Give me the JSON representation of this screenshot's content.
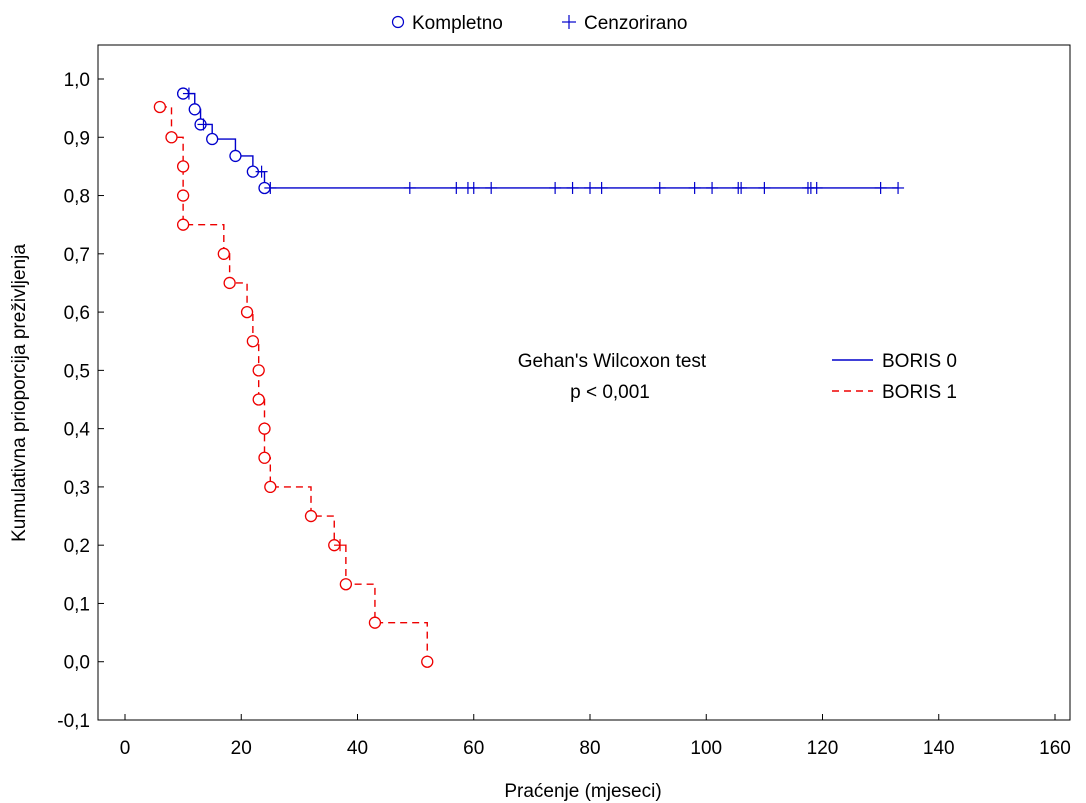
{
  "chart_data": {
    "type": "line",
    "title": "",
    "xlabel": "Praćenje (mjeseci)",
    "ylabel": "Kumulativna prioporcija preživljenja",
    "xlim": [
      0,
      160
    ],
    "ylim": [
      -0.1,
      1.0
    ],
    "x_ticks": [
      0,
      20,
      40,
      60,
      80,
      100,
      120,
      140,
      160
    ],
    "y_ticks": [
      -0.1,
      0.0,
      0.1,
      0.2,
      0.3,
      0.4,
      0.5,
      0.6,
      0.7,
      0.8,
      0.9,
      1.0
    ],
    "x_tick_labels": [
      "0",
      "20",
      "40",
      "60",
      "80",
      "100",
      "120",
      "140",
      "160"
    ],
    "y_tick_labels": [
      "-0,1",
      "0,0",
      "0,1",
      "0,2",
      "0,3",
      "0,4",
      "0,5",
      "0,6",
      "0,7",
      "0,8",
      "0,9",
      "1,0"
    ],
    "grid": false,
    "legend_top": {
      "complete_label": "Kompletno",
      "censored_label": "Cenzorirano",
      "placement": "top-center"
    },
    "annotation": {
      "line1": "Gehan's Wilcoxon test",
      "line2": "p < 0,001"
    },
    "series": [
      {
        "name": "BORIS 0",
        "color": "#0000cc",
        "style": "solid",
        "start": [
          10,
          0.98
        ],
        "events": [
          [
            10,
            0.975
          ],
          [
            12,
            0.948
          ],
          [
            13,
            0.922
          ],
          [
            15,
            0.897
          ],
          [
            19,
            0.868
          ],
          [
            22,
            0.841
          ],
          [
            24,
            0.813
          ]
        ],
        "censored": [
          [
            11,
            0.975
          ],
          [
            13.5,
            0.922
          ],
          [
            23.5,
            0.841
          ],
          [
            25,
            0.813
          ],
          [
            49,
            0.813
          ],
          [
            57,
            0.813
          ],
          [
            59,
            0.813
          ],
          [
            60,
            0.813
          ],
          [
            63,
            0.813
          ],
          [
            74,
            0.813
          ],
          [
            77,
            0.813
          ],
          [
            80,
            0.813
          ],
          [
            82,
            0.813
          ],
          [
            92,
            0.813
          ],
          [
            98,
            0.813
          ],
          [
            101,
            0.813
          ],
          [
            105.5,
            0.813
          ],
          [
            106,
            0.813
          ],
          [
            110,
            0.813
          ],
          [
            117.5,
            0.813
          ],
          [
            118,
            0.813
          ],
          [
            119,
            0.813
          ],
          [
            130,
            0.813
          ],
          [
            133,
            0.813
          ]
        ],
        "end_x": 133
      },
      {
        "name": "BORIS 1",
        "color": "#ee0000",
        "style": "dashed",
        "start": [
          6,
          0.952
        ],
        "events": [
          [
            6,
            0.952
          ],
          [
            8,
            0.9
          ],
          [
            10,
            0.85
          ],
          [
            10,
            0.8
          ],
          [
            10,
            0.75
          ],
          [
            17,
            0.7
          ],
          [
            18,
            0.65
          ],
          [
            21,
            0.6
          ],
          [
            22,
            0.55
          ],
          [
            23,
            0.5
          ],
          [
            23,
            0.45
          ],
          [
            24,
            0.4
          ],
          [
            24,
            0.35
          ],
          [
            25,
            0.3
          ],
          [
            32,
            0.25
          ],
          [
            36,
            0.2
          ],
          [
            38,
            0.133
          ],
          [
            43,
            0.067
          ],
          [
            52,
            0.0
          ]
        ],
        "censored": [
          [
            37,
            0.2
          ]
        ],
        "end_x": 52
      }
    ]
  }
}
